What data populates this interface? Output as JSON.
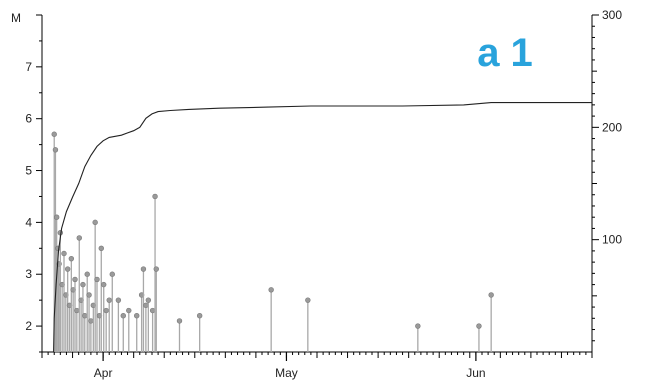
{
  "chart_data": {
    "type": "stem-with-cumulative-line",
    "panel_label": "a 1",
    "panel_label_color": "#29a3dc",
    "left_axis": {
      "unit_label": "M",
      "range": [
        1.5,
        8
      ],
      "ticks": [
        2,
        3,
        4,
        5,
        6,
        7
      ]
    },
    "right_axis": {
      "range": [
        0,
        300
      ],
      "ticks": [
        100,
        200,
        300
      ]
    },
    "x_axis": {
      "unit": "day of year",
      "range": [
        81,
        171
      ],
      "months": [
        {
          "label": "Apr",
          "day": 91
        },
        {
          "label": "May",
          "day": 121
        },
        {
          "label": "Jun",
          "day": 152
        }
      ],
      "minor_tick_step_days": 1,
      "major_tick_step_days": 5
    },
    "events": [
      {
        "x": 83.0,
        "m": 5.7
      },
      {
        "x": 83.2,
        "m": 5.4
      },
      {
        "x": 83.4,
        "m": 4.1
      },
      {
        "x": 83.6,
        "m": 3.5
      },
      {
        "x": 83.8,
        "m": 3.2
      },
      {
        "x": 84.0,
        "m": 3.8
      },
      {
        "x": 84.3,
        "m": 2.8
      },
      {
        "x": 84.6,
        "m": 3.4
      },
      {
        "x": 84.9,
        "m": 2.6
      },
      {
        "x": 85.2,
        "m": 3.1
      },
      {
        "x": 85.5,
        "m": 2.4
      },
      {
        "x": 85.8,
        "m": 3.3
      },
      {
        "x": 86.1,
        "m": 2.7
      },
      {
        "x": 86.4,
        "m": 2.9
      },
      {
        "x": 86.7,
        "m": 2.3
      },
      {
        "x": 87.1,
        "m": 3.7
      },
      {
        "x": 87.4,
        "m": 2.5
      },
      {
        "x": 87.7,
        "m": 2.8
      },
      {
        "x": 88.0,
        "m": 2.2
      },
      {
        "x": 88.4,
        "m": 3.0
      },
      {
        "x": 88.7,
        "m": 2.6
      },
      {
        "x": 89.0,
        "m": 2.1
      },
      {
        "x": 89.4,
        "m": 2.4
      },
      {
        "x": 89.7,
        "m": 4.0
      },
      {
        "x": 90.0,
        "m": 2.9
      },
      {
        "x": 90.4,
        "m": 2.2
      },
      {
        "x": 90.7,
        "m": 3.5
      },
      {
        "x": 91.1,
        "m": 2.8
      },
      {
        "x": 91.5,
        "m": 2.3
      },
      {
        "x": 92.0,
        "m": 2.5
      },
      {
        "x": 92.5,
        "m": 3.0
      },
      {
        "x": 93.5,
        "m": 2.5
      },
      {
        "x": 94.3,
        "m": 2.2
      },
      {
        "x": 95.2,
        "m": 2.3
      },
      {
        "x": 96.5,
        "m": 2.2
      },
      {
        "x": 97.3,
        "m": 2.6
      },
      {
        "x": 97.6,
        "m": 3.1
      },
      {
        "x": 98.0,
        "m": 2.4
      },
      {
        "x": 98.4,
        "m": 2.5
      },
      {
        "x": 99.1,
        "m": 2.3
      },
      {
        "x": 99.5,
        "m": 4.5
      },
      {
        "x": 99.7,
        "m": 3.1
      },
      {
        "x": 103.5,
        "m": 2.1
      },
      {
        "x": 106.8,
        "m": 2.2
      },
      {
        "x": 118.5,
        "m": 2.7
      },
      {
        "x": 124.5,
        "m": 2.5
      },
      {
        "x": 142.5,
        "m": 2.0
      },
      {
        "x": 152.5,
        "m": 2.0
      },
      {
        "x": 154.5,
        "m": 2.6
      }
    ],
    "cumulative": [
      {
        "x": 82.9,
        "n": 0
      },
      {
        "x": 83.0,
        "n": 30
      },
      {
        "x": 83.3,
        "n": 60
      },
      {
        "x": 83.7,
        "n": 90
      },
      {
        "x": 84.2,
        "n": 110
      },
      {
        "x": 85.0,
        "n": 125
      },
      {
        "x": 86.0,
        "n": 138
      },
      {
        "x": 87.0,
        "n": 150
      },
      {
        "x": 88.0,
        "n": 165
      },
      {
        "x": 89.0,
        "n": 175
      },
      {
        "x": 90.0,
        "n": 183
      },
      {
        "x": 91.0,
        "n": 188
      },
      {
        "x": 92.0,
        "n": 191
      },
      {
        "x": 93.0,
        "n": 192
      },
      {
        "x": 94.0,
        "n": 193
      },
      {
        "x": 95.0,
        "n": 195
      },
      {
        "x": 96.0,
        "n": 197
      },
      {
        "x": 97.0,
        "n": 200
      },
      {
        "x": 98.0,
        "n": 208
      },
      {
        "x": 99.0,
        "n": 212
      },
      {
        "x": 100.0,
        "n": 214
      },
      {
        "x": 102.0,
        "n": 215
      },
      {
        "x": 105.0,
        "n": 216
      },
      {
        "x": 110.0,
        "n": 217
      },
      {
        "x": 118.0,
        "n": 218
      },
      {
        "x": 125.0,
        "n": 219
      },
      {
        "x": 140.0,
        "n": 219
      },
      {
        "x": 150.0,
        "n": 220
      },
      {
        "x": 154.5,
        "n": 222
      },
      {
        "x": 171.0,
        "n": 222
      }
    ],
    "colors": {
      "stem": "#a8a8a8",
      "marker": "#9a9a9a",
      "cumulative_line": "#222222",
      "axis": "#000000"
    }
  }
}
